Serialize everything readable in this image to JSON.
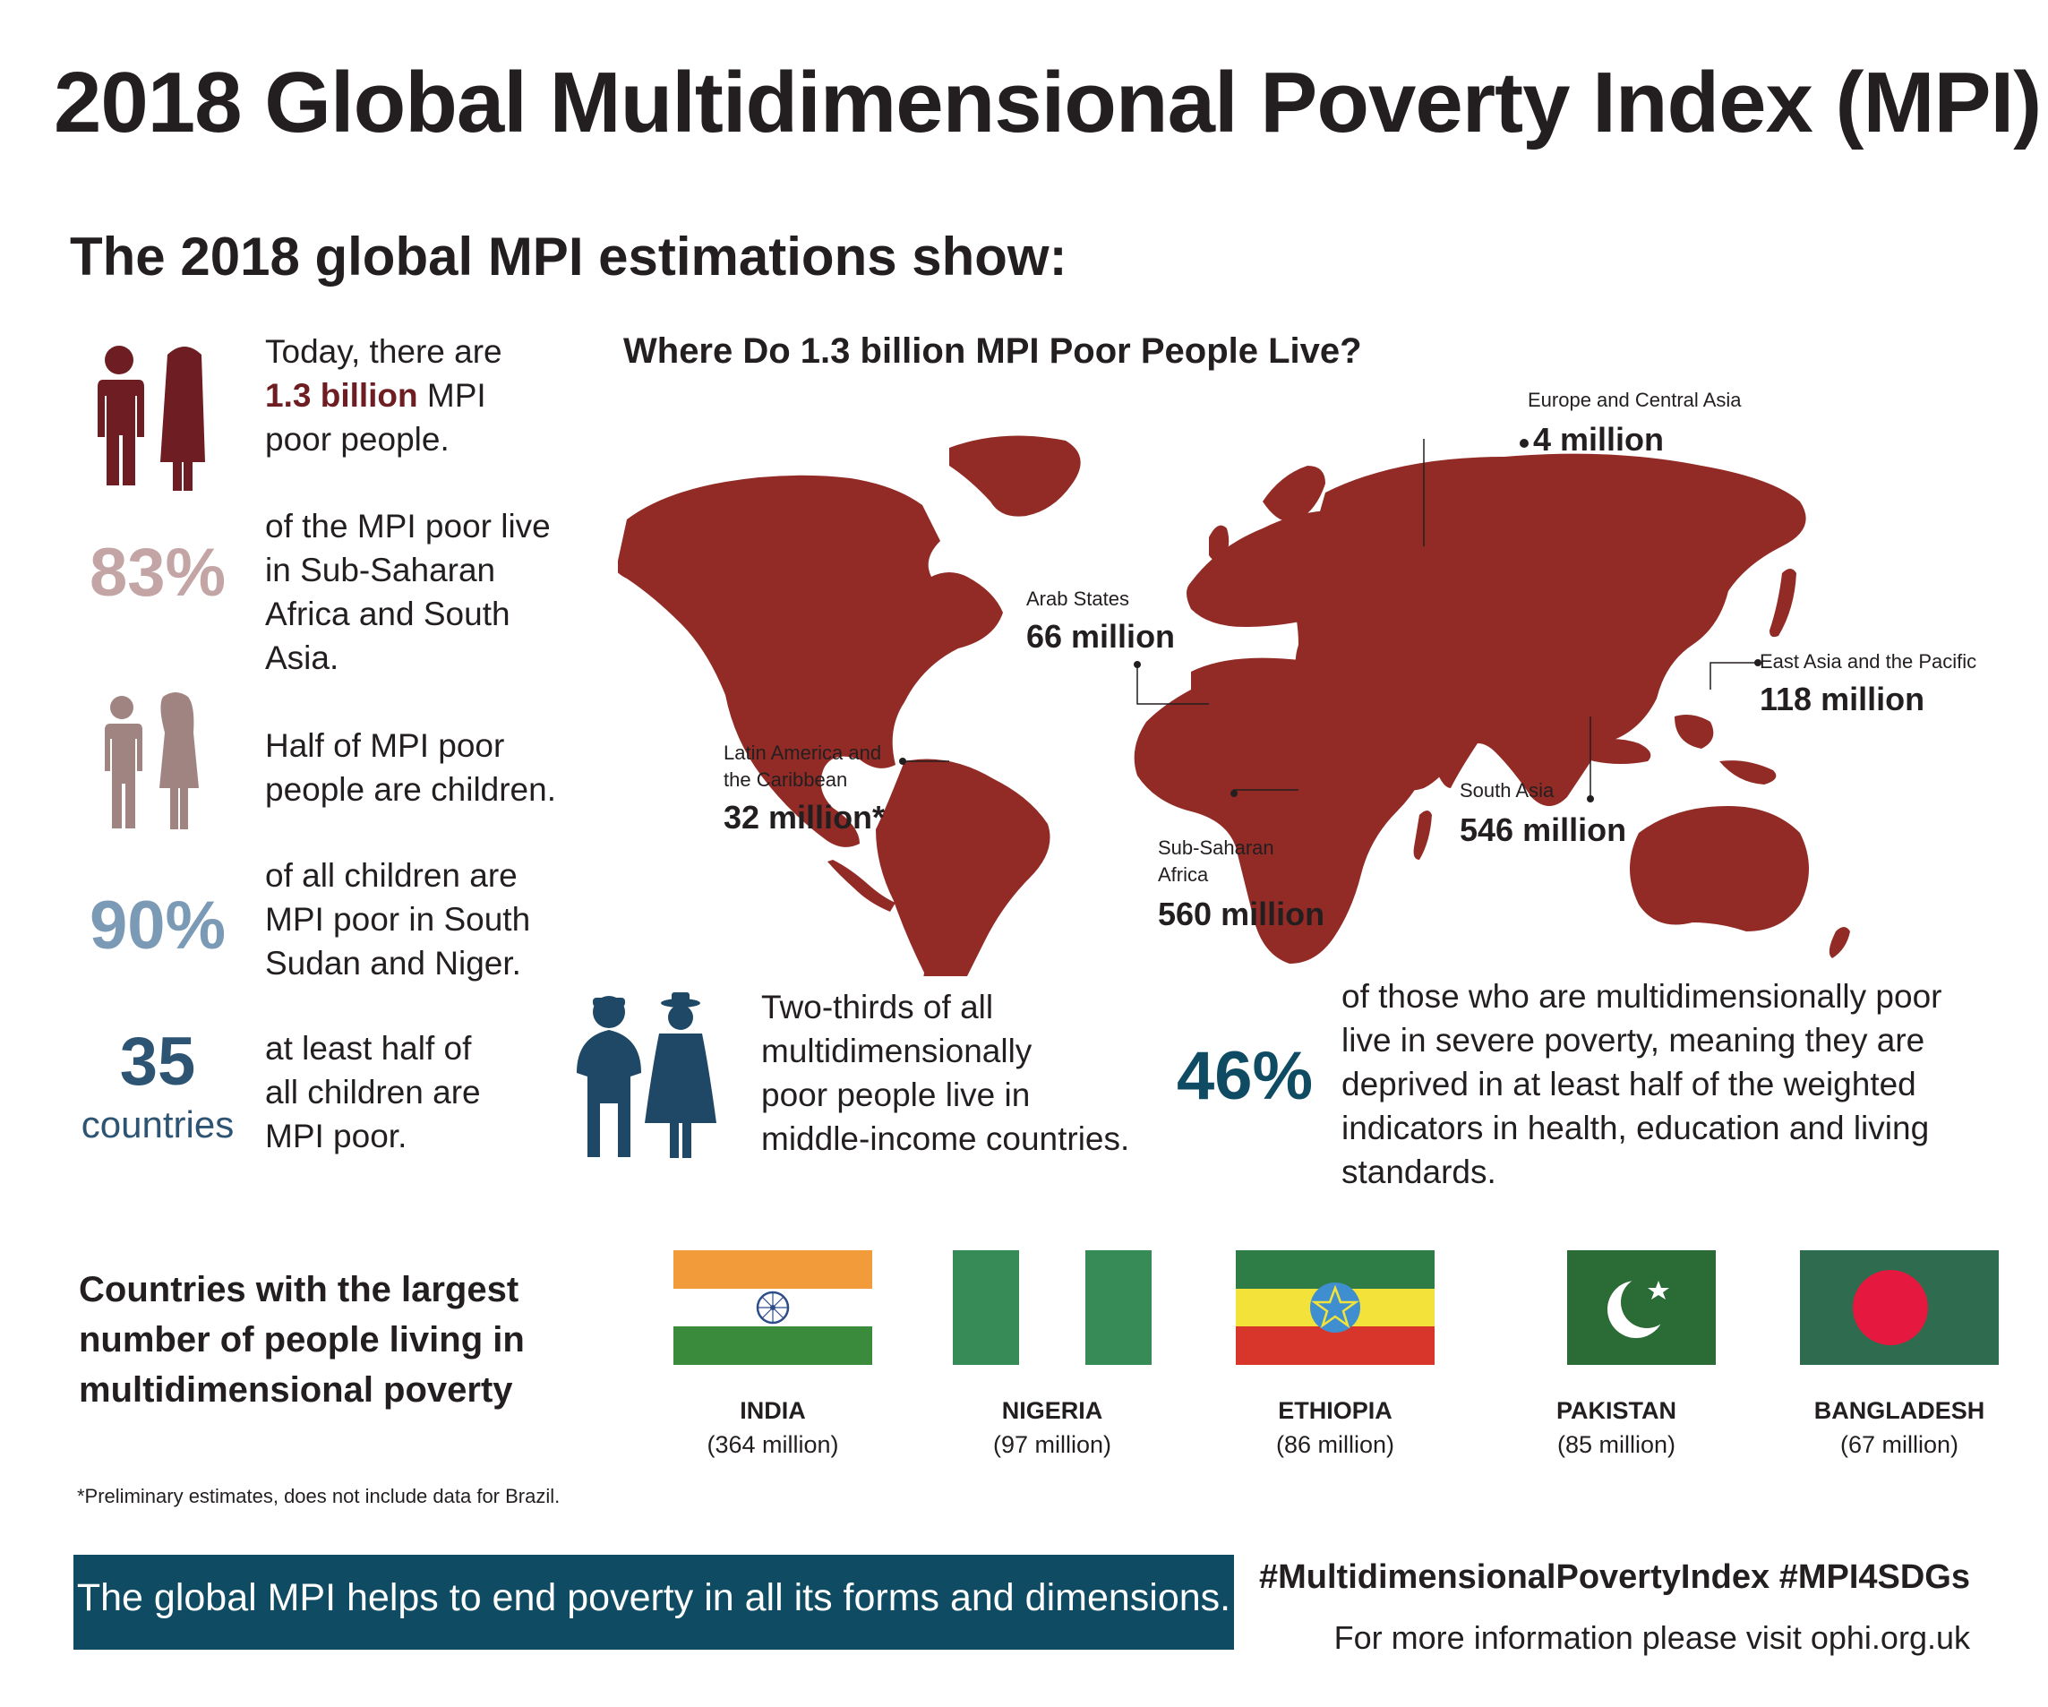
{
  "title": "2018 Global Multidimensional Poverty Index (MPI)",
  "subtitle": "The 2018 global MPI estimations show:",
  "colors": {
    "maroon": "#6e1e23",
    "map_red": "#922b26",
    "pink": "#c4a5a6",
    "mauve": "#a08482",
    "steel_blue": "#7b9ab5",
    "navy": "#2d5473",
    "dark_teal": "#0f4c63",
    "navy_icon": "#1f4866"
  },
  "stats": {
    "poor_people": {
      "line1": "Today, there are",
      "highlight": "1.3 billion",
      "line2_rest": " MPI",
      "line3": "poor people."
    },
    "pct83": {
      "value": "83%",
      "lines": [
        "of the MPI poor live",
        "in Sub-Saharan",
        "Africa and South",
        "Asia."
      ]
    },
    "children": {
      "lines": [
        "Half of MPI poor",
        "people are children."
      ]
    },
    "pct90": {
      "value": "90%",
      "lines": [
        "of all children are",
        "MPI poor in South",
        "Sudan and Niger."
      ]
    },
    "countries35": {
      "value": "35",
      "unit": "countries",
      "lines": [
        "at least half of",
        "all children are",
        "MPI poor."
      ]
    },
    "middle_income": {
      "lines": [
        "Two-thirds of all",
        "multidimensionally",
        "poor people live in",
        "middle-income countries."
      ]
    },
    "pct46": {
      "value": "46%",
      "lines": [
        "of those who are multidimensionally poor",
        "live in severe poverty, meaning they are",
        "deprived in at least half of the weighted",
        "indicators in health, education and living",
        "standards."
      ]
    }
  },
  "map": {
    "title": "Where Do 1.3 billion MPI Poor People Live?",
    "regions": {
      "europe": {
        "name": "Europe and Central Asia",
        "value": "4  million"
      },
      "arab": {
        "name": "Arab States",
        "value": "66  million"
      },
      "east_asia": {
        "name": "East Asia and the Pacific",
        "value": "118  million"
      },
      "latin": {
        "name1": "Latin America and",
        "name2": "the Caribbean",
        "value": "32  million*"
      },
      "south_asia": {
        "name": "South Asia",
        "value": "546  million"
      },
      "ssa": {
        "name1": "Sub-Saharan",
        "name2": "Africa",
        "value": "560  million"
      }
    }
  },
  "countries_section": {
    "heading_lines": [
      "Countries with the largest",
      "number of people living in",
      "multidimensional poverty"
    ],
    "countries": [
      {
        "name": "INDIA",
        "value": "(364 million)"
      },
      {
        "name": "NIGERIA",
        "value": "(97 million)"
      },
      {
        "name": "ETHIOPIA",
        "value": "(86 million)"
      },
      {
        "name": "PAKISTAN",
        "value": "(85 million)"
      },
      {
        "name": "BANGLADESH",
        "value": "(67 million)"
      }
    ]
  },
  "footnote": "*Preliminary estimates, does not include data for Brazil.",
  "footer": {
    "banner": "The global MPI helps to end poverty in all its forms and dimensions.",
    "hashtags": "#MultidimensionalPovertyIndex    #MPI4SDGs",
    "more_info": "For more information please visit ophi.org.uk"
  }
}
